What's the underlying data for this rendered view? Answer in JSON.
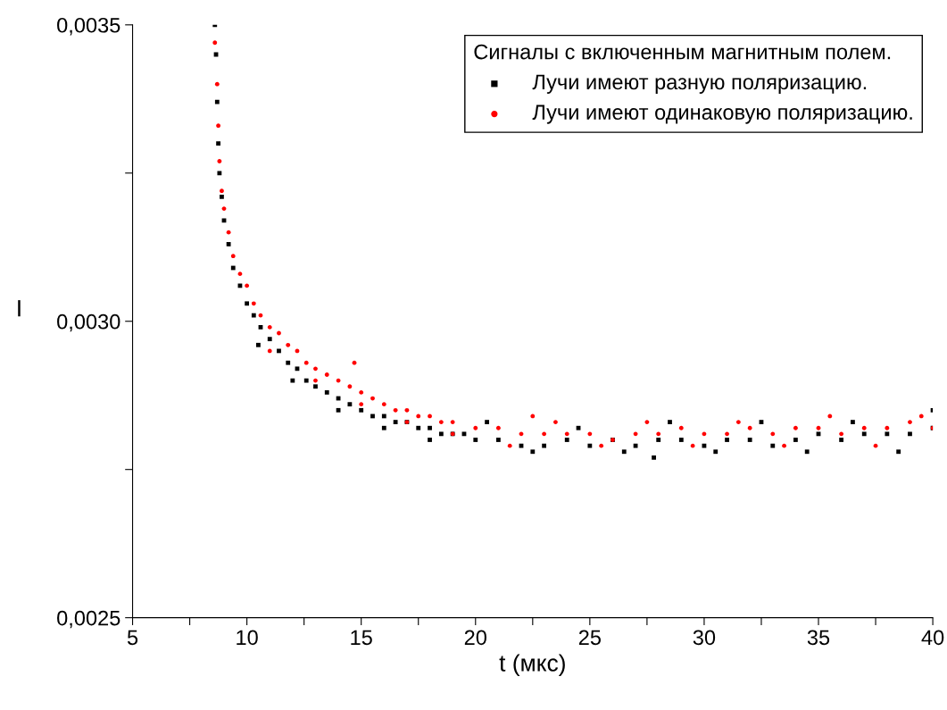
{
  "chart_data": {
    "type": "scatter",
    "xlabel": "t (мкс)",
    "ylabel": "I",
    "legend_title": "Сигналы с включенным магнитным полем.",
    "xlim": [
      5,
      40
    ],
    "xticks": [
      5,
      {
        "value": 7.5,
        "label": null
      },
      10,
      {
        "value": 12.5,
        "label": null
      },
      15,
      {
        "value": 17.5,
        "label": null
      },
      20,
      {
        "value": 22.5,
        "label": null
      },
      25,
      {
        "value": 27.5,
        "label": null
      },
      30,
      {
        "value": 32.5,
        "label": null
      },
      35,
      {
        "value": 37.5,
        "label": null
      },
      40
    ],
    "ylim": [
      0.0025,
      0.0035
    ],
    "yticks": [
      {
        "value": 0.0025,
        "label": "0,0025"
      },
      {
        "value": 0.00275,
        "label": null
      },
      {
        "value": 0.003,
        "label": "0,0030"
      },
      {
        "value": 0.00325,
        "label": null
      },
      {
        "value": 0.0035,
        "label": "0,0035"
      }
    ],
    "grid": false,
    "legend": "top right",
    "series": [
      {
        "name": "Лучи имеют разную поляризацию.",
        "color": "#000000",
        "marker": "square",
        "x": [
          8.6,
          8.65,
          8.7,
          8.75,
          8.8,
          8.9,
          9.0,
          9.2,
          9.4,
          9.7,
          10.0,
          10.3,
          10.6,
          11.0,
          11.4,
          11.8,
          12.2,
          12.6,
          13.0,
          13.5,
          14.0,
          14.5,
          15.0,
          15.5,
          16.0,
          16.5,
          17.0,
          17.5,
          18.0,
          18.5,
          19.0,
          19.5,
          20,
          21,
          22,
          23,
          24,
          25,
          26,
          27,
          27.8,
          28,
          29,
          30,
          31,
          32,
          33,
          34,
          35,
          36,
          37,
          38,
          39,
          40,
          40,
          10.5,
          12,
          14,
          16,
          18,
          20.5,
          22.5,
          24.5,
          26.5,
          28.5,
          30.5,
          32.5,
          34.5,
          36.5,
          38.5
        ],
        "values": [
          0.0035,
          0.00345,
          0.00337,
          0.0033,
          0.00325,
          0.00321,
          0.00317,
          0.00313,
          0.00309,
          0.00306,
          0.00303,
          0.00301,
          0.00299,
          0.00297,
          0.00295,
          0.00293,
          0.00292,
          0.0029,
          0.00289,
          0.00288,
          0.00287,
          0.00286,
          0.00285,
          0.00284,
          0.00284,
          0.00283,
          0.00283,
          0.00282,
          0.00282,
          0.00281,
          0.00281,
          0.00281,
          0.0028,
          0.0028,
          0.00279,
          0.00279,
          0.0028,
          0.00279,
          0.0028,
          0.00279,
          0.00277,
          0.0028,
          0.0028,
          0.00279,
          0.0028,
          0.0028,
          0.00279,
          0.0028,
          0.00281,
          0.0028,
          0.00281,
          0.00281,
          0.00281,
          0.00282,
          0.00285,
          0.00296,
          0.0029,
          0.00285,
          0.00282,
          0.0028,
          0.00283,
          0.00278,
          0.00282,
          0.00278,
          0.00283,
          0.00278,
          0.00283,
          0.00278,
          0.00283,
          0.00278
        ]
      },
      {
        "name": "Лучи имеют одинаковую поляризацию.",
        "color": "#ff0000",
        "marker": "circle",
        "x": [
          8.6,
          8.7,
          8.75,
          8.8,
          8.9,
          9.0,
          9.2,
          9.4,
          9.7,
          10.0,
          10.3,
          10.6,
          11.0,
          11.4,
          11.8,
          12.2,
          12.6,
          13.0,
          13.5,
          14.0,
          14.5,
          14.7,
          15.0,
          15.5,
          16.0,
          16.5,
          17.0,
          17.5,
          18.0,
          18.5,
          19.0,
          20,
          21,
          22,
          22.5,
          23,
          24,
          25,
          26,
          27,
          28,
          29,
          30,
          31,
          32,
          33,
          34,
          35,
          36,
          37,
          38,
          39,
          40,
          11,
          13,
          15,
          17,
          19,
          21.5,
          23.5,
          25.5,
          27.5,
          29.5,
          31.5,
          33.5,
          35.5,
          37.5,
          39.5
        ],
        "values": [
          0.00347,
          0.0034,
          0.00333,
          0.00327,
          0.00322,
          0.00319,
          0.00315,
          0.00311,
          0.00308,
          0.00306,
          0.00303,
          0.00301,
          0.00299,
          0.00298,
          0.00296,
          0.00295,
          0.00293,
          0.00292,
          0.00291,
          0.0029,
          0.00289,
          0.00293,
          0.00288,
          0.00287,
          0.00286,
          0.00285,
          0.00285,
          0.00284,
          0.00284,
          0.00283,
          0.00283,
          0.00282,
          0.00282,
          0.00281,
          0.00284,
          0.00281,
          0.00281,
          0.00281,
          0.0028,
          0.00281,
          0.00281,
          0.00282,
          0.00281,
          0.00281,
          0.00282,
          0.00281,
          0.00282,
          0.00282,
          0.00281,
          0.00282,
          0.00282,
          0.00283,
          0.00282,
          0.00295,
          0.0029,
          0.00286,
          0.00283,
          0.00281,
          0.00279,
          0.00283,
          0.00279,
          0.00283,
          0.00279,
          0.00283,
          0.00279,
          0.00284,
          0.00279,
          0.00284
        ]
      }
    ]
  }
}
